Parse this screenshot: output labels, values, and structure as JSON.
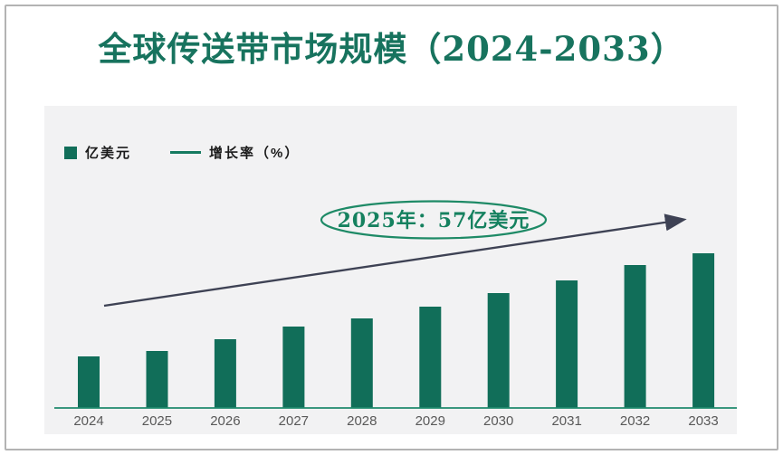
{
  "page": {
    "title": "全球传送带市场规模（2024-2033）"
  },
  "legend": {
    "bar_label": "亿美元",
    "line_label": "增长率（%）"
  },
  "annotation": {
    "text": "2025年：57亿美元"
  },
  "chart_data": {
    "type": "bar",
    "title": "全球传送带市场规模（2024-2033）",
    "unit": "亿美元",
    "categories": [
      "2024",
      "2025",
      "2026",
      "2027",
      "2028",
      "2029",
      "2030",
      "2031",
      "2032",
      "2033"
    ],
    "values": [
      52,
      57,
      69,
      81,
      90,
      101,
      115,
      128,
      143,
      155
    ],
    "series": [
      {
        "name": "亿美元",
        "type": "bar",
        "values": [
          52,
          57,
          69,
          81,
          90,
          101,
          115,
          128,
          143,
          155
        ]
      },
      {
        "name": "增长率（%）",
        "type": "line",
        "note": "rendered as straight upward trend arrow, no data labels visible"
      }
    ],
    "annotation": "2025年：57亿美元",
    "known_point": {
      "year": "2025",
      "value": 57,
      "unit": "亿美元"
    },
    "xlabel": "",
    "ylabel": "",
    "y_axis": "hidden",
    "grid": false,
    "legend_position": "top-left"
  },
  "colors": {
    "bar": "#116e59",
    "axis": "#1f8a6d",
    "arrow": "#3e4254",
    "ellipse": "#1e8a66",
    "annotation": "#15815f",
    "title": "#17735e",
    "panel": "#f2f2f3",
    "tick": "#595959",
    "legendtext": "#1a1a1a",
    "border": "#b3b3b3",
    "lineswatch": "#157a60"
  }
}
